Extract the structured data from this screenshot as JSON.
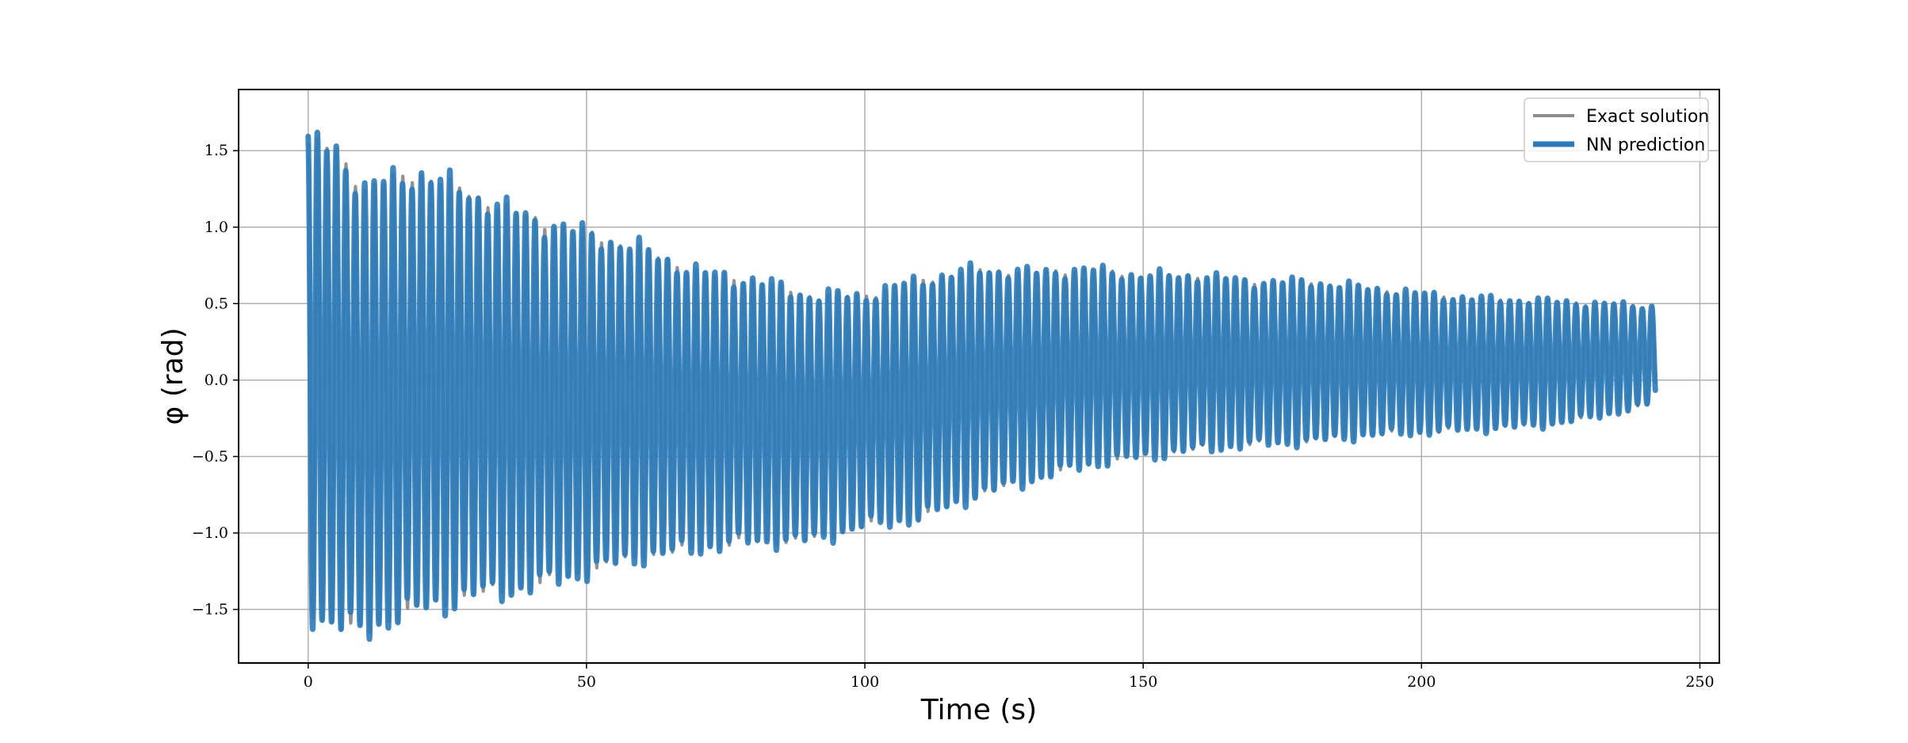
{
  "chart_data": {
    "type": "line",
    "title": "",
    "xlabel": "Time (s)",
    "ylabel": "φ (rad)",
    "xlim": [
      -12.5,
      253.5
    ],
    "ylim": [
      -1.85,
      1.9
    ],
    "xticks": [
      0,
      50,
      100,
      150,
      200,
      250
    ],
    "yticks": [
      -1.5,
      -1.0,
      -0.5,
      0.0,
      0.5,
      1.0,
      1.5
    ],
    "ytick_labels": [
      "−1.5",
      "−1.0",
      "−0.5",
      "0.0",
      "0.5",
      "1.0",
      "1.5"
    ],
    "grid": true,
    "legend_position": "top-right",
    "x_end": 242,
    "period_s": 1.7,
    "envelope": {
      "t": [
        0,
        5,
        10,
        15,
        20,
        30,
        40,
        50,
        60,
        70,
        80,
        90,
        100,
        110,
        120,
        130,
        140,
        150,
        160,
        170,
        180,
        190,
        200,
        210,
        220,
        230,
        242
      ],
      "upper": [
        1.55,
        1.5,
        1.25,
        1.3,
        1.35,
        1.2,
        1.05,
        0.95,
        0.85,
        0.7,
        0.65,
        0.55,
        0.55,
        0.65,
        0.72,
        0.7,
        0.72,
        0.68,
        0.68,
        0.64,
        0.64,
        0.6,
        0.56,
        0.53,
        0.52,
        0.5,
        0.48
      ],
      "lower": [
        -1.5,
        -1.6,
        -1.65,
        -1.55,
        -1.5,
        -1.4,
        -1.35,
        -1.25,
        -1.15,
        -1.1,
        -1.05,
        -1.05,
        -0.95,
        -0.9,
        -0.75,
        -0.65,
        -0.55,
        -0.5,
        -0.45,
        -0.42,
        -0.4,
        -0.36,
        -0.34,
        -0.32,
        -0.3,
        -0.25,
        -0.15
      ]
    },
    "series": [
      {
        "name": "Exact solution",
        "color": "#8c8c8c",
        "line_width": 4
      },
      {
        "name": "NN prediction",
        "color": "#2b7bba",
        "line_width": 7
      }
    ]
  }
}
